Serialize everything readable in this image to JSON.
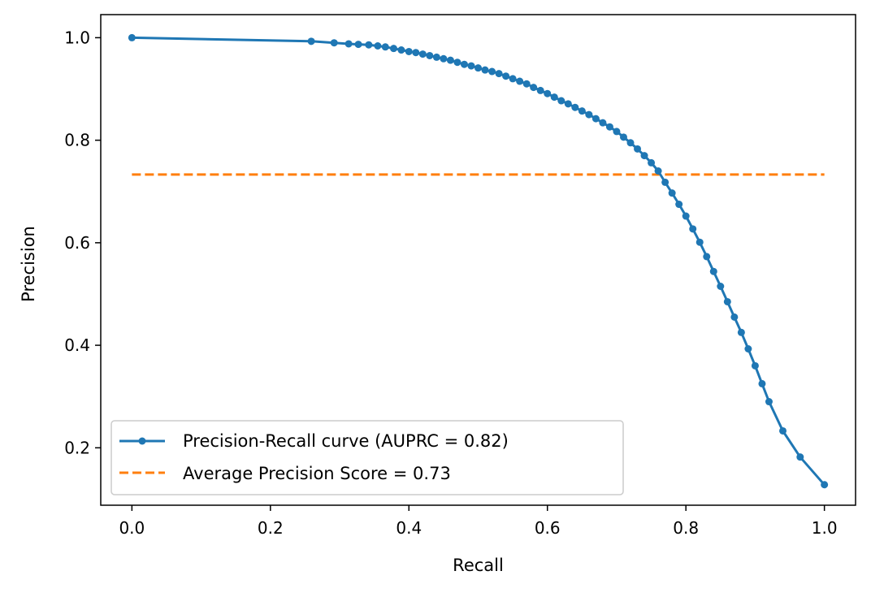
{
  "chart_data": {
    "type": "line",
    "xlabel": "Recall",
    "ylabel": "Precision",
    "xlim": [
      -0.045,
      1.045
    ],
    "ylim": [
      0.088,
      1.045
    ],
    "xticks": [
      0.0,
      0.2,
      0.4,
      0.6,
      0.8,
      1.0
    ],
    "yticks": [
      0.2,
      0.4,
      0.6,
      0.8,
      1.0
    ],
    "xtick_labels": [
      "0.0",
      "0.2",
      "0.4",
      "0.6",
      "0.8",
      "1.0"
    ],
    "ytick_labels": [
      "0.2",
      "0.4",
      "0.6",
      "0.8",
      "1.0"
    ],
    "grid": false,
    "legend_position": "lower left",
    "series": [
      {
        "name": "Precision-Recall curve (AUPRC = 0.82)",
        "style": "solid-with-markers",
        "color": "#1f77b4",
        "x": [
          0.0,
          0.259,
          0.292,
          0.313,
          0.327,
          0.342,
          0.355,
          0.366,
          0.378,
          0.389,
          0.4,
          0.41,
          0.42,
          0.43,
          0.44,
          0.45,
          0.46,
          0.47,
          0.48,
          0.49,
          0.5,
          0.51,
          0.52,
          0.53,
          0.54,
          0.55,
          0.56,
          0.57,
          0.58,
          0.59,
          0.6,
          0.61,
          0.62,
          0.63,
          0.64,
          0.65,
          0.66,
          0.67,
          0.68,
          0.69,
          0.7,
          0.71,
          0.72,
          0.73,
          0.74,
          0.75,
          0.76,
          0.77,
          0.78,
          0.79,
          0.8,
          0.81,
          0.82,
          0.83,
          0.84,
          0.85,
          0.86,
          0.87,
          0.88,
          0.89,
          0.9,
          0.91,
          0.92,
          0.94,
          0.965,
          1.0
        ],
        "y": [
          1.0,
          0.993,
          0.99,
          0.988,
          0.987,
          0.986,
          0.984,
          0.982,
          0.979,
          0.976,
          0.973,
          0.971,
          0.968,
          0.965,
          0.962,
          0.959,
          0.956,
          0.952,
          0.948,
          0.945,
          0.941,
          0.937,
          0.934,
          0.93,
          0.925,
          0.92,
          0.915,
          0.91,
          0.903,
          0.897,
          0.891,
          0.884,
          0.877,
          0.871,
          0.864,
          0.857,
          0.85,
          0.842,
          0.834,
          0.826,
          0.817,
          0.806,
          0.795,
          0.783,
          0.77,
          0.756,
          0.74,
          0.718,
          0.697,
          0.675,
          0.652,
          0.627,
          0.601,
          0.573,
          0.544,
          0.515,
          0.485,
          0.455,
          0.425,
          0.393,
          0.36,
          0.325,
          0.29,
          0.233,
          0.182,
          0.128
        ]
      },
      {
        "name": "Average Precision Score = 0.73",
        "style": "dashed",
        "color": "#ff7f0e",
        "x": [
          0.0,
          1.0
        ],
        "y": [
          0.733,
          0.733
        ]
      }
    ]
  }
}
